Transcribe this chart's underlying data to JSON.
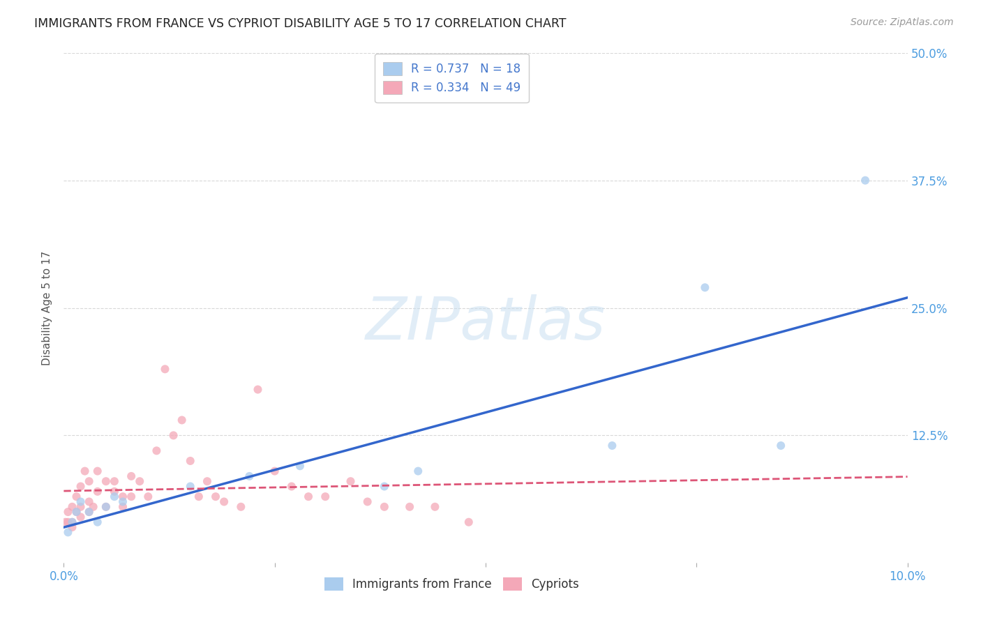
{
  "title": "IMMIGRANTS FROM FRANCE VS CYPRIOT DISABILITY AGE 5 TO 17 CORRELATION CHART",
  "source": "Source: ZipAtlas.com",
  "ylabel": "Disability Age 5 to 17",
  "xlim": [
    0.0,
    0.1
  ],
  "ylim": [
    0.0,
    0.5
  ],
  "ytick_labels": [
    "12.5%",
    "25.0%",
    "37.5%",
    "50.0%"
  ],
  "ytick_positions": [
    0.125,
    0.25,
    0.375,
    0.5
  ],
  "background_color": "#ffffff",
  "grid_color": "#d8d8d8",
  "axis_color": "#4d9de0",
  "blue_scatter_x": [
    0.0005,
    0.001,
    0.0015,
    0.002,
    0.003,
    0.004,
    0.005,
    0.006,
    0.007,
    0.015,
    0.022,
    0.028,
    0.038,
    0.042,
    0.065,
    0.076,
    0.085,
    0.095
  ],
  "blue_scatter_y": [
    0.03,
    0.04,
    0.05,
    0.06,
    0.05,
    0.04,
    0.055,
    0.065,
    0.06,
    0.075,
    0.085,
    0.095,
    0.075,
    0.09,
    0.115,
    0.27,
    0.115,
    0.375
  ],
  "pink_scatter_x": [
    0.0002,
    0.0005,
    0.0005,
    0.001,
    0.001,
    0.001,
    0.0015,
    0.0015,
    0.002,
    0.002,
    0.002,
    0.0025,
    0.003,
    0.003,
    0.003,
    0.0035,
    0.004,
    0.004,
    0.005,
    0.005,
    0.006,
    0.006,
    0.007,
    0.007,
    0.008,
    0.008,
    0.009,
    0.01,
    0.011,
    0.012,
    0.013,
    0.014,
    0.015,
    0.016,
    0.017,
    0.018,
    0.019,
    0.021,
    0.023,
    0.025,
    0.027,
    0.029,
    0.031,
    0.034,
    0.036,
    0.038,
    0.041,
    0.044,
    0.048
  ],
  "pink_scatter_y": [
    0.04,
    0.05,
    0.04,
    0.055,
    0.04,
    0.035,
    0.065,
    0.05,
    0.075,
    0.055,
    0.045,
    0.09,
    0.08,
    0.06,
    0.05,
    0.055,
    0.09,
    0.07,
    0.08,
    0.055,
    0.08,
    0.07,
    0.065,
    0.055,
    0.085,
    0.065,
    0.08,
    0.065,
    0.11,
    0.19,
    0.125,
    0.14,
    0.1,
    0.065,
    0.08,
    0.065,
    0.06,
    0.055,
    0.17,
    0.09,
    0.075,
    0.065,
    0.065,
    0.08,
    0.06,
    0.055,
    0.055,
    0.055,
    0.04
  ],
  "blue_color": "#aaccee",
  "pink_color": "#f4a8b8",
  "blue_line_color": "#3366cc",
  "pink_line_color": "#dd5577",
  "legend_text_color": "#4477cc",
  "dot_size": 75,
  "legend_r1": "R = 0.737",
  "legend_n1": "N = 18",
  "legend_r2": "R = 0.334",
  "legend_n2": "N = 49",
  "watermark_text": "ZIPatlas",
  "watermark_color": "#c5ddf0",
  "watermark_alpha": 0.5
}
